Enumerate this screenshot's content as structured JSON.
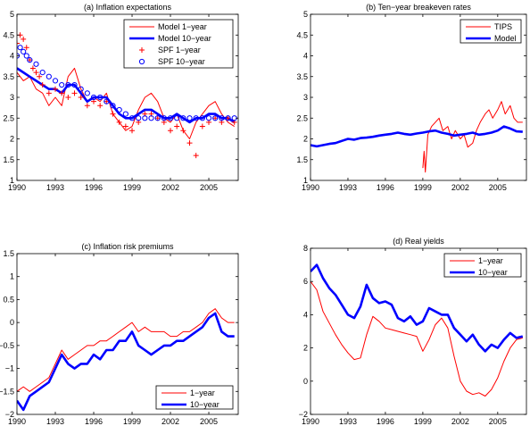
{
  "chart_data": [
    {
      "type": "line",
      "title": "(a) Inflation expectations",
      "xlim": [
        1990,
        2007.3
      ],
      "ylim": [
        1,
        5
      ],
      "xticks": [
        1990,
        1993,
        1996,
        1999,
        2002,
        2005
      ],
      "xtick_labels": [
        "1990",
        "1993",
        "1996",
        "1999",
        "2002",
        "2005"
      ],
      "yticks": [
        1,
        1.5,
        2,
        2.5,
        3,
        3.5,
        4,
        4.5,
        5
      ],
      "ytick_labels": [
        "1",
        "1.5",
        "2",
        "2.5",
        "3",
        "3.5",
        "4",
        "4.5",
        "5"
      ],
      "legend_position": "top-right",
      "series": [
        {
          "name": "Model 1−year",
          "color": "#ff0000",
          "style": "thin-line",
          "x": [
            1990.0,
            1990.5,
            1991.0,
            1991.5,
            1992.0,
            1992.5,
            1993.0,
            1993.5,
            1994.0,
            1994.5,
            1995.0,
            1995.5,
            1996.0,
            1996.5,
            1997.0,
            1997.5,
            1998.0,
            1998.5,
            1999.0,
            1999.5,
            2000.0,
            2000.5,
            2001.0,
            2001.5,
            2002.0,
            2002.5,
            2003.0,
            2003.5,
            2004.0,
            2004.5,
            2005.0,
            2005.5,
            2006.0,
            2006.5,
            2007.0
          ],
          "values": [
            3.6,
            3.4,
            3.5,
            3.2,
            3.1,
            2.8,
            3.0,
            2.8,
            3.5,
            3.7,
            3.2,
            2.9,
            3.0,
            2.9,
            3.1,
            2.6,
            2.4,
            2.2,
            2.3,
            2.7,
            3.0,
            3.1,
            2.9,
            2.5,
            2.4,
            2.6,
            2.2,
            2.0,
            2.4,
            2.6,
            2.8,
            2.9,
            2.6,
            2.4,
            2.3
          ]
        },
        {
          "name": "Model 10−year",
          "color": "#0000ff",
          "style": "thick-line",
          "x": [
            1990.0,
            1990.5,
            1991.0,
            1991.5,
            1992.0,
            1992.5,
            1993.0,
            1993.5,
            1994.0,
            1994.5,
            1995.0,
            1995.5,
            1996.0,
            1996.5,
            1997.0,
            1997.5,
            1998.0,
            1998.5,
            1999.0,
            1999.5,
            2000.0,
            2000.5,
            2001.0,
            2001.5,
            2002.0,
            2002.5,
            2003.0,
            2003.5,
            2004.0,
            2004.5,
            2005.0,
            2005.5,
            2006.0,
            2006.5,
            2007.0
          ],
          "values": [
            3.7,
            3.6,
            3.5,
            3.4,
            3.3,
            3.2,
            3.2,
            3.1,
            3.3,
            3.3,
            3.1,
            2.9,
            3.0,
            3.0,
            3.0,
            2.8,
            2.6,
            2.5,
            2.5,
            2.6,
            2.7,
            2.7,
            2.6,
            2.5,
            2.5,
            2.6,
            2.5,
            2.4,
            2.5,
            2.5,
            2.6,
            2.6,
            2.5,
            2.5,
            2.4
          ]
        },
        {
          "name": "SPF 1−year",
          "color": "#ff0000",
          "style": "plus-marker",
          "x": [
            1990.0,
            1990.25,
            1990.5,
            1990.75,
            1991.0,
            1991.25,
            1991.5,
            1991.75,
            1992.0,
            1992.5,
            1993.0,
            1993.5,
            1994.0,
            1994.5,
            1995.0,
            1995.5,
            1996.0,
            1996.5,
            1997.0,
            1997.5,
            1998.0,
            1998.5,
            1999.0,
            1999.5,
            2000.0,
            2000.5,
            2001.0,
            2001.5,
            2002.0,
            2002.5,
            2003.0,
            2003.5,
            2004.0,
            2004.5,
            2005.0,
            2005.5,
            2006.0,
            2006.5,
            2007.0
          ],
          "values": [
            4.3,
            4.5,
            4.4,
            4.2,
            3.9,
            3.7,
            3.6,
            3.5,
            3.3,
            3.1,
            3.2,
            3.1,
            3.0,
            3.1,
            3.0,
            2.8,
            2.9,
            2.8,
            2.9,
            2.6,
            2.4,
            2.3,
            2.2,
            2.4,
            2.6,
            2.6,
            2.5,
            2.4,
            2.2,
            2.3,
            2.2,
            1.9,
            1.6,
            2.3,
            2.4,
            2.5,
            2.4,
            2.5,
            2.4
          ]
        },
        {
          "name": "SPF 10−year",
          "color": "#0000ff",
          "style": "circle-marker",
          "x": [
            1990.0,
            1990.25,
            1990.5,
            1990.75,
            1991.0,
            1991.5,
            1992.0,
            1992.5,
            1993.0,
            1993.5,
            1994.0,
            1994.5,
            1995.0,
            1995.5,
            1996.0,
            1996.5,
            1997.0,
            1997.5,
            1998.0,
            1998.5,
            1999.0,
            1999.5,
            2000.0,
            2000.5,
            2001.0,
            2001.5,
            2002.0,
            2002.5,
            2003.0,
            2003.5,
            2004.0,
            2004.5,
            2005.0,
            2005.5,
            2006.0,
            2006.5,
            2007.0
          ],
          "values": [
            4.0,
            4.2,
            4.1,
            4.0,
            3.9,
            3.8,
            3.6,
            3.5,
            3.4,
            3.3,
            3.3,
            3.3,
            3.2,
            3.1,
            3.0,
            3.0,
            2.9,
            2.8,
            2.7,
            2.6,
            2.5,
            2.5,
            2.5,
            2.5,
            2.5,
            2.5,
            2.5,
            2.5,
            2.5,
            2.5,
            2.5,
            2.5,
            2.5,
            2.5,
            2.5,
            2.5,
            2.5
          ]
        }
      ]
    },
    {
      "type": "line",
      "title": "(b) Ten−year breakeven rates",
      "xlim": [
        1990,
        2007.3
      ],
      "ylim": [
        1,
        5
      ],
      "xticks": [
        1990,
        1993,
        1996,
        1999,
        2002,
        2005
      ],
      "xtick_labels": [
        "1990",
        "1993",
        "1996",
        "1999",
        "2002",
        "2005"
      ],
      "yticks": [
        1,
        1.5,
        2,
        2.5,
        3,
        3.5,
        4,
        4.5,
        5
      ],
      "ytick_labels": [
        "1",
        "1.5",
        "2",
        "2.5",
        "3",
        "3.5",
        "4",
        "4.5",
        "5"
      ],
      "legend_position": "top-right",
      "series": [
        {
          "name": "TIPS",
          "color": "#ff0000",
          "style": "thin-line",
          "x": [
            1999.0,
            1999.1,
            1999.2,
            1999.4,
            1999.7,
            2000.0,
            2000.3,
            2000.6,
            2001.0,
            2001.3,
            2001.6,
            2002.0,
            2002.3,
            2002.6,
            2003.0,
            2003.3,
            2003.6,
            2004.0,
            2004.3,
            2004.6,
            2005.0,
            2005.3,
            2005.6,
            2006.0,
            2006.3,
            2006.6,
            2007.0
          ],
          "values": [
            1.3,
            1.7,
            1.2,
            2.1,
            2.3,
            2.4,
            2.5,
            2.2,
            2.3,
            2.0,
            2.2,
            2.0,
            2.1,
            1.8,
            1.9,
            2.2,
            2.4,
            2.6,
            2.7,
            2.5,
            2.7,
            2.9,
            2.6,
            2.8,
            2.5,
            2.4,
            2.4
          ]
        },
        {
          "name": "Model",
          "color": "#0000ff",
          "style": "thick-line",
          "x": [
            1990.0,
            1990.5,
            1991.0,
            1991.5,
            1992.0,
            1992.5,
            1993.0,
            1993.5,
            1994.0,
            1994.5,
            1995.0,
            1995.5,
            1996.0,
            1996.5,
            1997.0,
            1997.5,
            1998.0,
            1998.5,
            1999.0,
            1999.5,
            2000.0,
            2000.5,
            2001.0,
            2001.5,
            2002.0,
            2002.5,
            2003.0,
            2003.5,
            2004.0,
            2004.5,
            2005.0,
            2005.5,
            2006.0,
            2006.5,
            2007.0
          ],
          "values": [
            1.85,
            1.82,
            1.85,
            1.88,
            1.9,
            1.95,
            2.0,
            1.98,
            2.02,
            2.03,
            2.05,
            2.08,
            2.1,
            2.12,
            2.15,
            2.12,
            2.1,
            2.13,
            2.15,
            2.18,
            2.2,
            2.15,
            2.12,
            2.08,
            2.1,
            2.12,
            2.15,
            2.1,
            2.12,
            2.15,
            2.2,
            2.3,
            2.25,
            2.18,
            2.17
          ]
        }
      ]
    },
    {
      "type": "line",
      "title": "(c) Inflation risk premiums",
      "xlim": [
        1990,
        2007.3
      ],
      "ylim": [
        -2,
        1.5
      ],
      "xticks": [
        1990,
        1993,
        1996,
        1999,
        2002,
        2005
      ],
      "xtick_labels": [
        "1990",
        "1993",
        "1996",
        "1999",
        "2002",
        "2005"
      ],
      "yticks": [
        -2,
        -1.5,
        -1,
        -0.5,
        0,
        0.5,
        1,
        1.5
      ],
      "ytick_labels": [
        "−2",
        "−1.5",
        "−1",
        "−0.5",
        "0",
        "0.5",
        "1",
        "1.5"
      ],
      "legend_position": "bottom-right",
      "series": [
        {
          "name": "1−year",
          "color": "#ff0000",
          "style": "thin-line",
          "x": [
            1990.0,
            1990.5,
            1991.0,
            1991.5,
            1992.0,
            1992.5,
            1993.0,
            1993.5,
            1994.0,
            1994.5,
            1995.0,
            1995.5,
            1996.0,
            1996.5,
            1997.0,
            1997.5,
            1998.0,
            1998.5,
            1999.0,
            1999.5,
            2000.0,
            2000.5,
            2001.0,
            2001.5,
            2002.0,
            2002.5,
            2003.0,
            2003.5,
            2004.0,
            2004.5,
            2005.0,
            2005.5,
            2006.0,
            2006.5,
            2007.0
          ],
          "values": [
            -1.5,
            -1.4,
            -1.5,
            -1.4,
            -1.3,
            -1.2,
            -0.9,
            -0.6,
            -0.8,
            -0.7,
            -0.6,
            -0.5,
            -0.5,
            -0.4,
            -0.4,
            -0.3,
            -0.2,
            -0.1,
            0.0,
            -0.2,
            -0.1,
            -0.2,
            -0.2,
            -0.2,
            -0.3,
            -0.3,
            -0.2,
            -0.2,
            -0.1,
            0.0,
            0.2,
            0.3,
            0.1,
            0.0,
            0.0
          ]
        },
        {
          "name": "10−year",
          "color": "#0000ff",
          "style": "thick-line",
          "x": [
            1990.0,
            1990.5,
            1991.0,
            1991.5,
            1992.0,
            1992.5,
            1993.0,
            1993.5,
            1994.0,
            1994.5,
            1995.0,
            1995.5,
            1996.0,
            1996.5,
            1997.0,
            1997.5,
            1998.0,
            1998.5,
            1999.0,
            1999.5,
            2000.0,
            2000.5,
            2001.0,
            2001.5,
            2002.0,
            2002.5,
            2003.0,
            2003.5,
            2004.0,
            2004.5,
            2005.0,
            2005.5,
            2006.0,
            2006.5,
            2007.0
          ],
          "values": [
            -1.7,
            -1.9,
            -1.6,
            -1.5,
            -1.4,
            -1.3,
            -1.0,
            -0.7,
            -0.9,
            -1.0,
            -0.9,
            -0.9,
            -0.7,
            -0.8,
            -0.6,
            -0.6,
            -0.4,
            -0.4,
            -0.2,
            -0.5,
            -0.6,
            -0.7,
            -0.6,
            -0.5,
            -0.5,
            -0.4,
            -0.4,
            -0.3,
            -0.2,
            -0.1,
            0.1,
            0.2,
            -0.2,
            -0.3,
            -0.3
          ]
        }
      ]
    },
    {
      "type": "line",
      "title": "(d) Real yields",
      "xlim": [
        1990,
        2007.3
      ],
      "ylim": [
        -2,
        8
      ],
      "xticks": [
        1990,
        1993,
        1996,
        1999,
        2002,
        2005
      ],
      "xtick_labels": [
        "1990",
        "1993",
        "1996",
        "1999",
        "2002",
        "2005"
      ],
      "yticks": [
        -2,
        0,
        2,
        4,
        6,
        8
      ],
      "ytick_labels": [
        "−2",
        "0",
        "2",
        "4",
        "6",
        "8"
      ],
      "legend_position": "top-right",
      "series": [
        {
          "name": "1−year",
          "color": "#ff0000",
          "style": "thin-line",
          "x": [
            1990.0,
            1990.5,
            1991.0,
            1991.5,
            1992.0,
            1992.5,
            1993.0,
            1993.5,
            1994.0,
            1994.5,
            1995.0,
            1995.5,
            1996.0,
            1996.5,
            1997.0,
            1997.5,
            1998.0,
            1998.5,
            1999.0,
            1999.5,
            2000.0,
            2000.5,
            2001.0,
            2001.5,
            2002.0,
            2002.5,
            2003.0,
            2003.5,
            2004.0,
            2004.5,
            2005.0,
            2005.5,
            2006.0,
            2006.5,
            2007.0
          ],
          "values": [
            6.0,
            5.5,
            4.2,
            3.5,
            2.8,
            2.2,
            1.7,
            1.3,
            1.4,
            2.8,
            3.9,
            3.6,
            3.2,
            3.1,
            3.0,
            2.9,
            2.8,
            2.7,
            1.8,
            2.5,
            3.4,
            3.8,
            3.2,
            1.5,
            0.0,
            -0.6,
            -0.8,
            -0.7,
            -0.9,
            -0.5,
            0.2,
            1.2,
            2.0,
            2.5,
            2.6
          ]
        },
        {
          "name": "10−year",
          "color": "#0000ff",
          "style": "thick-line",
          "x": [
            1990.0,
            1990.5,
            1991.0,
            1991.5,
            1992.0,
            1992.5,
            1993.0,
            1993.5,
            1994.0,
            1994.5,
            1995.0,
            1995.5,
            1996.0,
            1996.5,
            1997.0,
            1997.5,
            1998.0,
            1998.5,
            1999.0,
            1999.5,
            2000.0,
            2000.5,
            2001.0,
            2001.5,
            2002.0,
            2002.5,
            2003.0,
            2003.5,
            2004.0,
            2004.5,
            2005.0,
            2005.5,
            2006.0,
            2006.5,
            2007.0
          ],
          "values": [
            6.6,
            7.0,
            6.2,
            5.6,
            5.2,
            4.6,
            4.0,
            3.8,
            4.5,
            5.8,
            5.0,
            4.7,
            4.8,
            4.6,
            3.8,
            3.6,
            3.9,
            3.4,
            3.6,
            4.4,
            4.2,
            4.0,
            4.0,
            3.2,
            2.8,
            2.4,
            2.8,
            2.2,
            1.8,
            2.2,
            2.0,
            2.5,
            2.9,
            2.6,
            2.7
          ]
        }
      ]
    }
  ]
}
